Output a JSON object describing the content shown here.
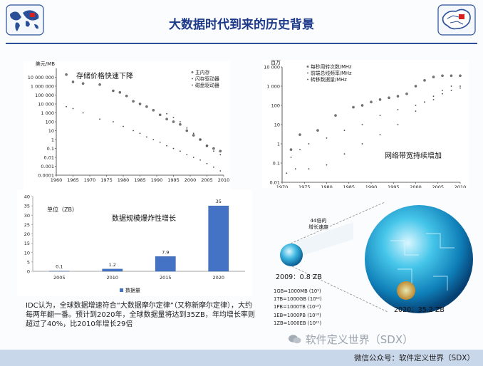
{
  "slide": {
    "title": "大数据时代到来的历史背景",
    "description": "IDC认为，全球数据增速符合“大数据摩尔定律”（又称新摩尔定律），大约每两年翻一番。预计到2020年，全球数据量将达到35ZB，年均增长率则超过了40%，比2010年增长29倍",
    "watermark": "软件定义世界（SDX）",
    "footer": "微信公众号：软件定义世界（SDX）",
    "colors": {
      "accent": "#1d3a8a",
      "bar": "#4472c4",
      "footer": "#c9d7ea"
    }
  },
  "globe_panel": {
    "small_label": "2009：0.8 ZB",
    "large_label": "2020：35.2 ZB",
    "speed_label": "44倍的\n增长速度",
    "units": [
      "1GB=1000MB (10⁹)",
      "1TB=1000GB (10¹²)",
      "1PB=1000TB (10¹⁵)",
      "1EB=1000PB (10¹⁸)",
      "1ZB=1000EB (10²¹)"
    ]
  },
  "chart_data": [
    {
      "type": "scatter",
      "title": "存储价格快速下降",
      "ylabel": "美元/MB",
      "xlim": [
        1960,
        2010
      ],
      "yscale": "log",
      "ylim": [
        0.0001,
        100000000
      ],
      "x_ticks": [
        1960,
        1965,
        1970,
        1975,
        1980,
        1985,
        1990,
        1995,
        2000,
        2005,
        2010
      ],
      "y_ticks": [
        {
          "v": 10000000,
          "t": "10 000 000"
        },
        {
          "v": 1000000,
          "t": "1 000 000"
        },
        {
          "v": 100000,
          "t": "100 000"
        },
        {
          "v": 10000,
          "t": "10 000"
        },
        {
          "v": 1000,
          "t": "1 000"
        },
        {
          "v": 100,
          "t": "100"
        },
        {
          "v": 10,
          "t": "10"
        },
        {
          "v": 1,
          "t": "1"
        },
        {
          "v": 0.1,
          "t": "0.1"
        },
        {
          "v": 0.01,
          "t": "0.01"
        },
        {
          "v": 0.001,
          "t": "0.001"
        },
        {
          "v": 0.0001,
          "t": "0.0001"
        }
      ],
      "legend": "top-right",
      "series": [
        {
          "name": "主内存",
          "marker": "large",
          "points": [
            [
              1963,
              20000000
            ],
            [
              1965,
              3000000
            ],
            [
              1968,
              2000000
            ],
            [
              1973,
              1500000
            ],
            [
              1977,
              300000
            ],
            [
              1979,
              200000
            ],
            [
              1981,
              80000
            ],
            [
              1983,
              20000
            ],
            [
              1985,
              10000
            ],
            [
              1987,
              5000
            ],
            [
              1989,
              2000
            ],
            [
              1991,
              600
            ],
            [
              1993,
              200
            ],
            [
              1995,
              100
            ],
            [
              1997,
              50
            ],
            [
              1999,
              10
            ],
            [
              2001,
              3
            ],
            [
              2003,
              1
            ],
            [
              2005,
              0.2
            ],
            [
              2007,
              0.1
            ],
            [
              2009,
              0.05
            ]
          ]
        },
        {
          "name": "闪存驱动器",
          "marker": "small",
          "points": [
            [
              1993,
              800
            ],
            [
              1995,
              300
            ],
            [
              1997,
              100
            ],
            [
              1999,
              20
            ],
            [
              2001,
              5
            ],
            [
              2003,
              1
            ],
            [
              2005,
              0.2
            ],
            [
              2007,
              0.05
            ],
            [
              2009,
              0.02
            ]
          ]
        },
        {
          "name": "磁盘驱动器",
          "marker": "small",
          "points": [
            [
              1963,
              5000
            ],
            [
              1965,
              3000
            ],
            [
              1968,
              1000
            ],
            [
              1973,
              200
            ],
            [
              1977,
              100
            ],
            [
              1980,
              30
            ],
            [
              1983,
              10
            ],
            [
              1985,
              5
            ],
            [
              1987,
              2
            ],
            [
              1989,
              1
            ],
            [
              1991,
              0.5
            ],
            [
              1993,
              0.2
            ],
            [
              1995,
              0.1
            ],
            [
              1997,
              0.05
            ],
            [
              1999,
              0.02
            ],
            [
              2001,
              0.01
            ],
            [
              2003,
              0.005
            ],
            [
              2005,
              0.002
            ],
            [
              2007,
              0.0008
            ],
            [
              2009,
              0.0003
            ]
          ]
        }
      ]
    },
    {
      "type": "scatter",
      "title": "网络带宽持续增加",
      "ylabel": "百万",
      "xlim": [
        1970,
        2010
      ],
      "yscale": "log",
      "ylim": [
        0.01,
        10000
      ],
      "x_ticks": [
        1970,
        1975,
        1980,
        1985,
        1990,
        1995,
        2000,
        2005,
        2010
      ],
      "y_ticks": [
        {
          "v": 10000,
          "t": "10 000"
        },
        {
          "v": 1000,
          "t": "1 000"
        },
        {
          "v": 100,
          "t": "100"
        },
        {
          "v": 10,
          "t": "10"
        },
        {
          "v": 1,
          "t": "1"
        },
        {
          "v": 0.1,
          "t": "0.1"
        },
        {
          "v": 0.01,
          "t": "0.01"
        }
      ],
      "legend": "top-left",
      "series": [
        {
          "name": "每秒周转次数/MHz",
          "marker": "large",
          "points": [
            [
              1972,
              0.5
            ],
            [
              1974,
              3
            ],
            [
              1978,
              5
            ],
            [
              1982,
              30
            ],
            [
              1986,
              80
            ],
            [
              1988,
              100
            ],
            [
              1990,
              150
            ],
            [
              1992,
              200
            ],
            [
              1994,
              250
            ],
            [
              1996,
              300
            ],
            [
              1998,
              400
            ],
            [
              2000,
              1000
            ],
            [
              2002,
              2000
            ],
            [
              2004,
              3000
            ],
            [
              2006,
              3500
            ],
            [
              2008,
              3500
            ],
            [
              2010,
              3500
            ]
          ]
        },
        {
          "name": "前端总线频率/MHz",
          "marker": "small",
          "points": [
            [
              1972,
              0.2
            ],
            [
              1974,
              0.5
            ],
            [
              1976,
              1
            ],
            [
              1980,
              2
            ],
            [
              1984,
              5
            ],
            [
              1988,
              10
            ],
            [
              1992,
              30
            ],
            [
              1996,
              60
            ],
            [
              2000,
              100
            ],
            [
              2002,
              150
            ],
            [
              2004,
              200
            ],
            [
              2006,
              400
            ],
            [
              2008,
              600
            ],
            [
              2010,
              800
            ]
          ]
        },
        {
          "name": "转移数据量/MHz",
          "marker": "small",
          "points": [
            [
              1971,
              0.03
            ],
            [
              1973,
              0.05
            ],
            [
              1976,
              0.05
            ],
            [
              1980,
              0.08
            ],
            [
              1984,
              0.3
            ],
            [
              1988,
              1
            ],
            [
              1992,
              3
            ],
            [
              1996,
              10
            ],
            [
              2000,
              50
            ],
            [
              2002,
              150
            ],
            [
              2004,
              300
            ],
            [
              2006,
              600
            ],
            [
              2008,
              1000
            ],
            [
              2010,
              1000
            ]
          ]
        }
      ]
    },
    {
      "type": "bar",
      "title": "数据规模爆炸性增长",
      "unit_label": "单位（ZB）",
      "categories": [
        "2005",
        "2010",
        "2015",
        "2020"
      ],
      "values": [
        0.1,
        1.2,
        7.9,
        35
      ],
      "ylim": [
        0,
        40
      ],
      "y_ticks": [
        0,
        5,
        10,
        15,
        20,
        25,
        30,
        35,
        40
      ],
      "legend": "bottom-center",
      "series_name": "数据量"
    }
  ]
}
